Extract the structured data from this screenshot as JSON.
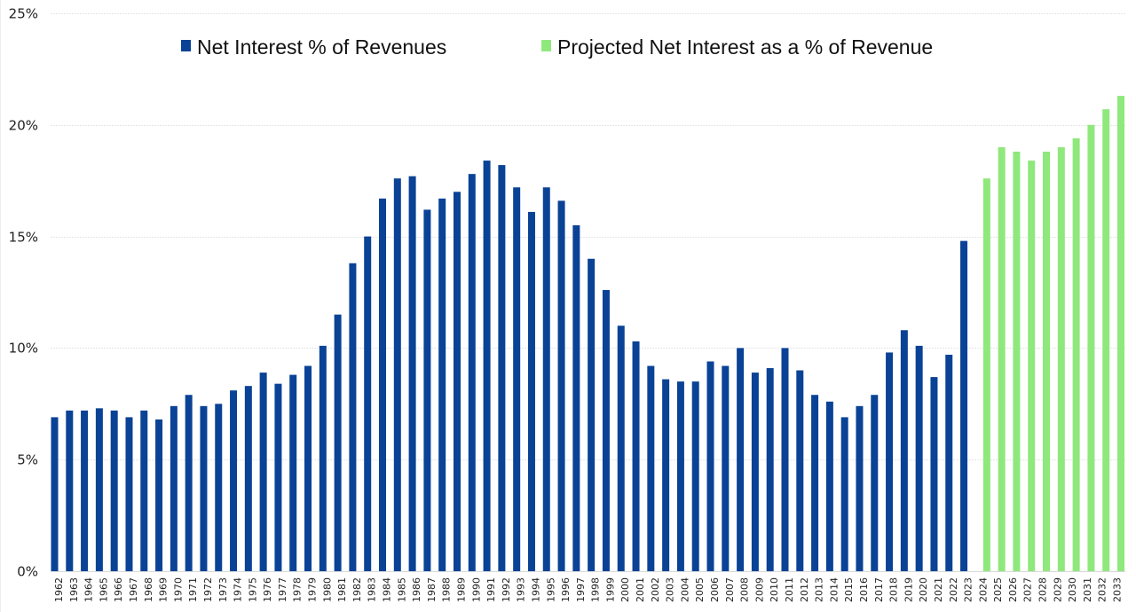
{
  "chart_data": {
    "type": "bar",
    "title": "",
    "xlabel": "",
    "ylabel": "",
    "ylim": [
      0,
      25
    ],
    "yticks": [
      0,
      5,
      10,
      15,
      20,
      25
    ],
    "ytick_labels": [
      "0%",
      "5%",
      "10%",
      "15%",
      "20%",
      "25%"
    ],
    "grid": true,
    "legend_position": "top-center",
    "categories": [
      "1962",
      "1963",
      "1964",
      "1965",
      "1966",
      "1967",
      "1968",
      "1969",
      "1970",
      "1971",
      "1972",
      "1973",
      "1974",
      "1975",
      "1976",
      "1977",
      "1978",
      "1979",
      "1980",
      "1981",
      "1982",
      "1983",
      "1984",
      "1985",
      "1986",
      "1987",
      "1988",
      "1989",
      "1990",
      "1991",
      "1992",
      "1993",
      "1994",
      "1995",
      "1996",
      "1997",
      "1998",
      "1999",
      "2000",
      "2001",
      "2002",
      "2003",
      "2004",
      "2005",
      "2006",
      "2007",
      "2008",
      "2009",
      "2010",
      "2011",
      "2012",
      "2013",
      "2014",
      "2015",
      "2016",
      "2017",
      "2018",
      "2019",
      "2020",
      "2021",
      "2022",
      "2023",
      "2024",
      "2025",
      "2026",
      "2027",
      "2028",
      "2029",
      "2030",
      "2031",
      "2032",
      "2033"
    ],
    "series": [
      {
        "name": "Net Interest % of Revenues",
        "color": "#0a4296",
        "values": [
          6.9,
          7.2,
          7.2,
          7.3,
          7.2,
          6.9,
          7.2,
          6.8,
          7.4,
          7.9,
          7.4,
          7.5,
          8.1,
          8.3,
          8.9,
          8.4,
          8.8,
          9.2,
          10.1,
          11.5,
          13.8,
          15.0,
          16.7,
          17.6,
          17.7,
          16.2,
          16.7,
          17.0,
          17.8,
          18.4,
          18.2,
          17.2,
          16.1,
          17.2,
          16.6,
          15.5,
          14.0,
          12.6,
          11.0,
          10.3,
          9.2,
          8.6,
          8.5,
          8.5,
          9.4,
          9.2,
          10.0,
          8.9,
          9.1,
          10.0,
          9.0,
          7.9,
          7.6,
          6.9,
          7.4,
          7.9,
          9.8,
          10.8,
          10.1,
          8.7,
          9.7,
          14.8,
          null,
          null,
          null,
          null,
          null,
          null,
          null,
          null,
          null,
          null
        ]
      },
      {
        "name": "Projected Net Interest as a % of Revenue",
        "color": "#8fe87c",
        "values": [
          null,
          null,
          null,
          null,
          null,
          null,
          null,
          null,
          null,
          null,
          null,
          null,
          null,
          null,
          null,
          null,
          null,
          null,
          null,
          null,
          null,
          null,
          null,
          null,
          null,
          null,
          null,
          null,
          null,
          null,
          null,
          null,
          null,
          null,
          null,
          null,
          null,
          null,
          null,
          null,
          null,
          null,
          null,
          null,
          null,
          null,
          null,
          null,
          null,
          null,
          null,
          null,
          null,
          null,
          null,
          null,
          null,
          null,
          null,
          null,
          null,
          null,
          17.6,
          19.0,
          18.8,
          18.4,
          18.8,
          19.0,
          19.4,
          20.0,
          20.7,
          21.3
        ]
      }
    ]
  }
}
